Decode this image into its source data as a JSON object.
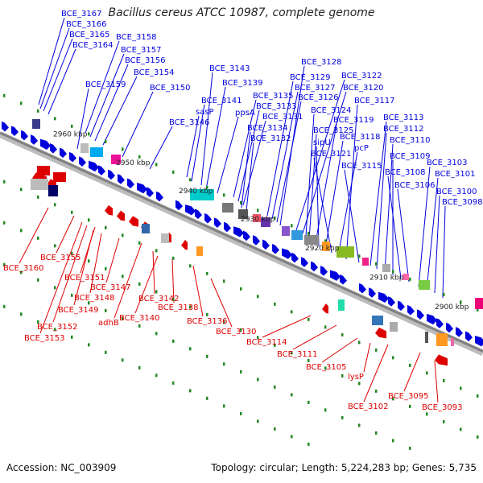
{
  "header": {
    "title": "Bacillus cereus ATCC 10987, complete genome"
  },
  "footer": {
    "accession": "Accession: NC_003909",
    "topology": "Topology: circular; Length: 5,224,283 bp; Genes: 5,735"
  },
  "colors": {
    "forward": "#0000dd",
    "reverse": "#dd0000",
    "backbone": "#808080",
    "tick": "#228822"
  },
  "ticks": [
    {
      "label": "2960 kbp"
    },
    {
      "label": "2950 kbp"
    },
    {
      "label": "2940 kbp"
    },
    {
      "label": "2930 kbp"
    },
    {
      "label": "2920 kbp"
    },
    {
      "label": "2910 kbp"
    },
    {
      "label": "2900 kbp"
    }
  ],
  "forward_labels": [
    "BCE_3167",
    "BCE_3166",
    "BCE_3165",
    "BCE_3164",
    "BCE_3158",
    "BCE_3157",
    "BCE_3156",
    "BCE_3154",
    "BCE_3159",
    "BCE_3150",
    "BCE_3146",
    "sasP",
    "BCE_3141",
    "BCE_3143",
    "BCE_3139",
    "ppsA",
    "BCE_3135",
    "BCE_3133",
    "BCE_3131",
    "BCE_3134",
    "BCE_3132",
    "BCE_3129",
    "BCE_3127",
    "BCE_3126",
    "BCE_3128",
    "BCE_3122",
    "BCE_3120",
    "BCE_3124",
    "BCE_3125",
    "BCE_3119",
    "sipU",
    "BCE_3118",
    "BCE_3121",
    "pcP",
    "BCE_3117",
    "BCE_3115",
    "BCE_3113",
    "BCE_3112",
    "BCE_3110",
    "BCE_3109",
    "BCE_3108",
    "BCE_3106",
    "BCE_3103",
    "BCE_3101",
    "BCE_3100",
    "BCE_3098"
  ],
  "reverse_labels": [
    "BCE_3160",
    "BCE_3155",
    "BCE_3151",
    "BCE_3148",
    "BCE_3147",
    "BCE_3149",
    "BCE_3152",
    "BCE_3153",
    "adhB",
    "BCE_3142",
    "BCE_3140",
    "BCE_3138",
    "BCE_3136",
    "BCE_3130",
    "BCE_3114",
    "BCE_3111",
    "BCE_3105",
    "lysP",
    "BCE_3102",
    "BCE_3095",
    "BCE_3093"
  ]
}
